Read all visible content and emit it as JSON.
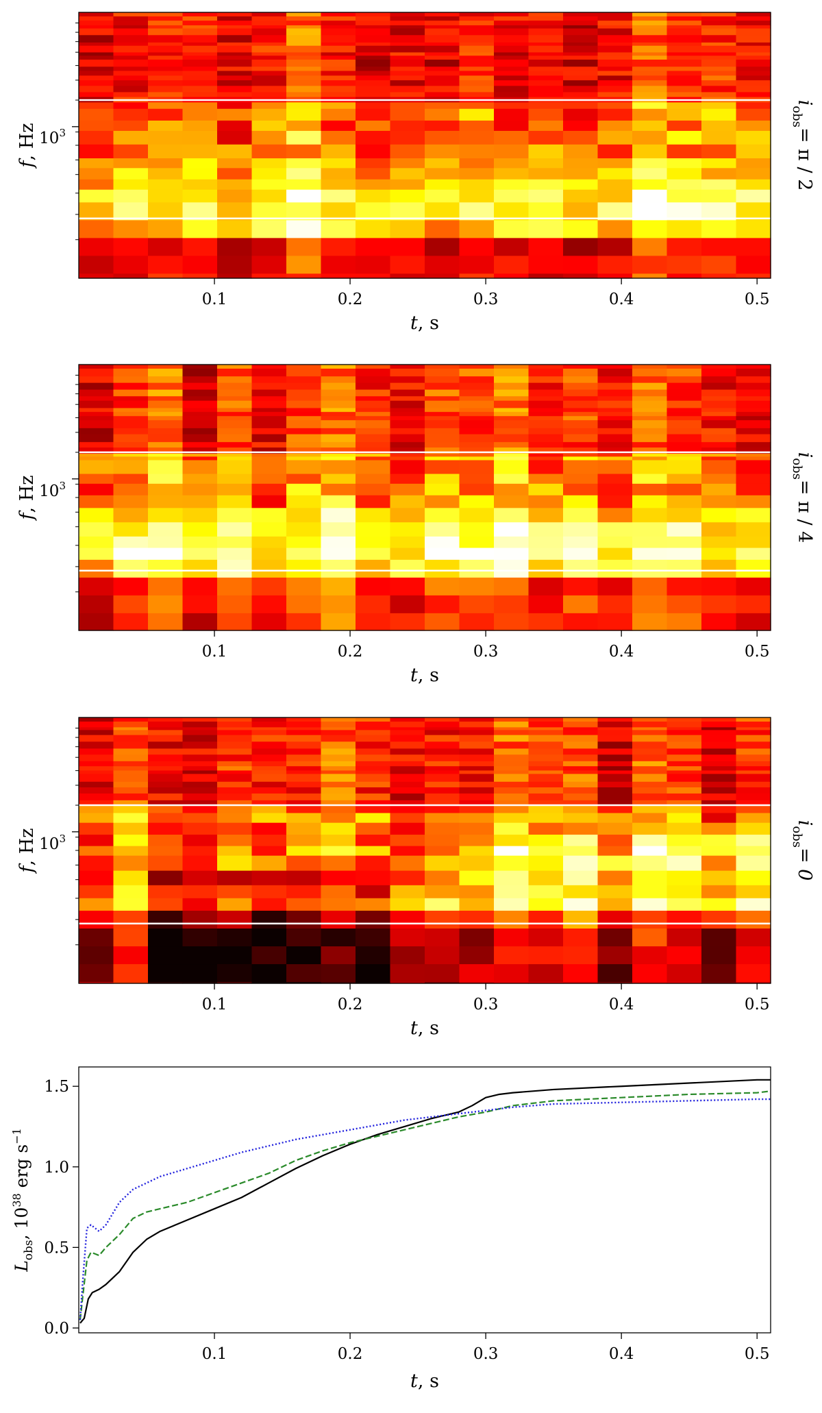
{
  "chart_data": [
    {
      "type": "heatmap",
      "panel_label": "i_obs = π / 2",
      "panel_label_main": "i",
      "panel_label_sub": "obs",
      "panel_label_rest": "=  π / 2",
      "xlabel_var": "t",
      "xlabel_unit": ", s",
      "ylabel_var": "f",
      "ylabel_unit": ", Hz",
      "xlim": [
        0.0,
        0.51
      ],
      "x_ticks": [
        "0.1",
        "0.2",
        "0.3",
        "0.4",
        "0.5"
      ],
      "x_tick_values": [
        0.1,
        0.2,
        0.3,
        0.4,
        0.5
      ],
      "y_tick_label": "10",
      "y_tick_exp": "3",
      "y_scale": "log",
      "white_lines": "two horizontal",
      "colormap": "hot"
    },
    {
      "type": "heatmap",
      "panel_label": "i_obs = π / 4",
      "panel_label_main": "i",
      "panel_label_sub": "obs",
      "panel_label_rest": "=  π / 4",
      "xlabel_var": "t",
      "xlabel_unit": ", s",
      "ylabel_var": "f",
      "ylabel_unit": ", Hz",
      "xlim": [
        0.0,
        0.51
      ],
      "x_ticks": [
        "0.1",
        "0.2",
        "0.3",
        "0.4",
        "0.5"
      ],
      "x_tick_values": [
        0.1,
        0.2,
        0.3,
        0.4,
        0.5
      ],
      "y_tick_label": "10",
      "y_tick_exp": "3",
      "y_scale": "log",
      "white_lines": "two horizontal",
      "colormap": "hot"
    },
    {
      "type": "heatmap",
      "panel_label": "i_obs = 0",
      "panel_label_main": "i",
      "panel_label_sub": "obs",
      "panel_label_rest": "= 0",
      "xlabel_var": "t",
      "xlabel_unit": ", s",
      "ylabel_var": "f",
      "ylabel_unit": ", Hz",
      "xlim": [
        0.0,
        0.51
      ],
      "x_ticks": [
        "0.1",
        "0.2",
        "0.3",
        "0.4",
        "0.5"
      ],
      "x_tick_values": [
        0.1,
        0.2,
        0.3,
        0.4,
        0.5
      ],
      "y_tick_label": "10",
      "y_tick_exp": "3",
      "y_scale": "log",
      "white_lines": "two horizontal",
      "colormap": "hot"
    },
    {
      "type": "line",
      "xlabel_var": "t",
      "xlabel_unit": ", s",
      "ylabel_main": "L",
      "ylabel_sub": "obs",
      "ylabel_mid": ", 10",
      "ylabel_exp": "38",
      "ylabel_end": " erg s",
      "ylabel_end_exp": "−1",
      "xlim": [
        0.0,
        0.51
      ],
      "ylim": [
        -0.03,
        1.62
      ],
      "x_ticks": [
        "0.1",
        "0.2",
        "0.3",
        "0.4",
        "0.5"
      ],
      "x_tick_values": [
        0.1,
        0.2,
        0.3,
        0.4,
        0.5
      ],
      "y_ticks": [
        "0.0",
        "0.5",
        "1.0",
        "1.5"
      ],
      "y_tick_values": [
        0.0,
        0.5,
        1.0,
        1.5
      ],
      "series": [
        {
          "style": "solid",
          "color": "#000000",
          "x": [
            0.001,
            0.004,
            0.007,
            0.01,
            0.015,
            0.02,
            0.03,
            0.04,
            0.05,
            0.06,
            0.08,
            0.1,
            0.12,
            0.14,
            0.16,
            0.18,
            0.2,
            0.22,
            0.24,
            0.26,
            0.28,
            0.29,
            0.3,
            0.31,
            0.32,
            0.35,
            0.4,
            0.45,
            0.5,
            0.51
          ],
          "y": [
            0.03,
            0.06,
            0.18,
            0.22,
            0.24,
            0.27,
            0.35,
            0.47,
            0.55,
            0.6,
            0.67,
            0.74,
            0.81,
            0.9,
            0.99,
            1.07,
            1.14,
            1.2,
            1.25,
            1.3,
            1.34,
            1.38,
            1.43,
            1.45,
            1.46,
            1.48,
            1.5,
            1.52,
            1.54,
            1.54
          ]
        },
        {
          "style": "dashed",
          "color": "#2a8a2a",
          "x": [
            0.001,
            0.003,
            0.006,
            0.009,
            0.012,
            0.015,
            0.02,
            0.03,
            0.04,
            0.05,
            0.06,
            0.08,
            0.1,
            0.12,
            0.14,
            0.16,
            0.18,
            0.2,
            0.22,
            0.24,
            0.26,
            0.28,
            0.3,
            0.32,
            0.35,
            0.4,
            0.45,
            0.5,
            0.51
          ],
          "y": [
            0.05,
            0.2,
            0.42,
            0.47,
            0.46,
            0.45,
            0.5,
            0.58,
            0.68,
            0.72,
            0.74,
            0.78,
            0.84,
            0.9,
            0.96,
            1.04,
            1.1,
            1.15,
            1.19,
            1.23,
            1.27,
            1.31,
            1.34,
            1.38,
            1.41,
            1.43,
            1.45,
            1.46,
            1.47
          ]
        },
        {
          "style": "dotted",
          "color": "#1f1fdd",
          "x": [
            0.001,
            0.003,
            0.006,
            0.009,
            0.012,
            0.015,
            0.02,
            0.03,
            0.04,
            0.05,
            0.06,
            0.08,
            0.1,
            0.12,
            0.14,
            0.16,
            0.18,
            0.2,
            0.22,
            0.24,
            0.26,
            0.28,
            0.3,
            0.32,
            0.35,
            0.4,
            0.45,
            0.5,
            0.51
          ],
          "y": [
            0.05,
            0.3,
            0.62,
            0.64,
            0.62,
            0.6,
            0.64,
            0.78,
            0.86,
            0.9,
            0.94,
            0.99,
            1.04,
            1.09,
            1.13,
            1.17,
            1.2,
            1.23,
            1.26,
            1.29,
            1.31,
            1.33,
            1.35,
            1.37,
            1.39,
            1.4,
            1.41,
            1.42,
            1.42
          ]
        }
      ]
    }
  ]
}
